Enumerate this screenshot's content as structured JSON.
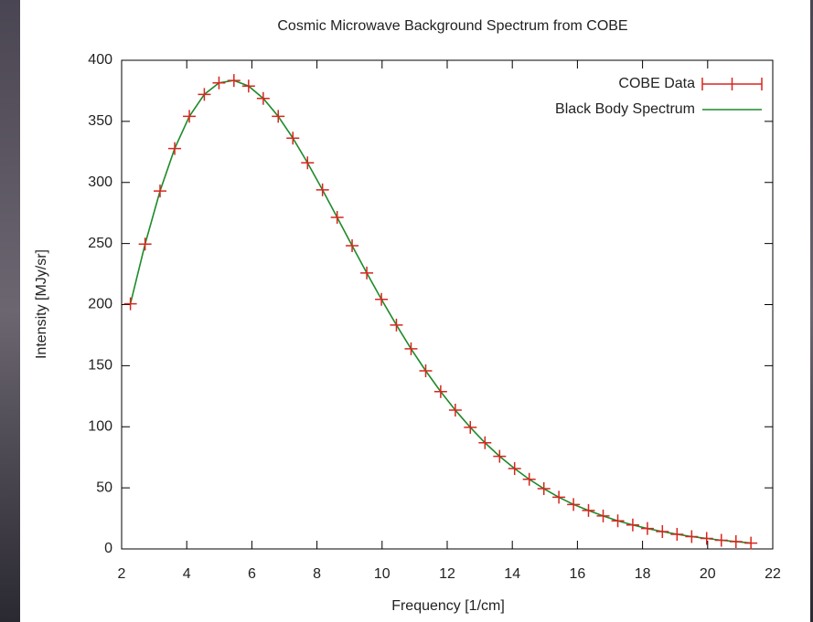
{
  "chart_data": {
    "type": "scatter",
    "title": "Cosmic Microwave Background Spectrum from COBE",
    "x_label": "Frequency [1/cm]",
    "y_label": "Intensity [MJy/sr]",
    "xlim": [
      2,
      22
    ],
    "xticks": [
      2,
      4,
      6,
      8,
      10,
      12,
      14,
      16,
      18,
      20,
      22
    ],
    "ylim": [
      0,
      400
    ],
    "yticks": [
      0,
      50,
      100,
      150,
      200,
      250,
      300,
      350,
      400
    ],
    "legend": "upper right",
    "series": [
      {
        "name": "COBE Data",
        "type": "scatter",
        "color": "#d7261e",
        "x": [
          2.27,
          2.72,
          3.18,
          3.63,
          4.08,
          4.54,
          4.99,
          5.45,
          5.9,
          6.35,
          6.81,
          7.26,
          7.71,
          8.17,
          8.62,
          9.08,
          9.53,
          9.98,
          10.44,
          10.89,
          11.34,
          11.8,
          12.25,
          12.71,
          13.16,
          13.61,
          14.07,
          14.52,
          14.97,
          15.43,
          15.88,
          16.34,
          16.79,
          17.24,
          17.7,
          18.15,
          18.61,
          19.06,
          19.51,
          19.97,
          20.42,
          20.87,
          21.33
        ],
        "values": [
          200.7,
          249.5,
          293.0,
          327.8,
          354.1,
          372.1,
          381.5,
          383.5,
          378.9,
          368.8,
          354.1,
          336.3,
          316.1,
          293.9,
          271.4,
          248.2,
          225.9,
          204.3,
          183.3,
          163.8,
          145.8,
          128.8,
          113.6,
          99.5,
          86.9,
          75.8,
          65.8,
          57.0,
          49.3,
          42.3,
          36.4,
          31.5,
          27.0,
          23.0,
          19.6,
          16.7,
          14.2,
          12.0,
          10.1,
          8.6,
          7.1,
          6.0,
          4.8
        ]
      },
      {
        "name": "Black Body Spectrum",
        "type": "line",
        "color": "#1f8a2a",
        "x": [
          2.27,
          2.72,
          3.18,
          3.63,
          4.08,
          4.54,
          4.99,
          5.45,
          5.9,
          6.35,
          6.81,
          7.26,
          7.71,
          8.17,
          8.62,
          9.08,
          9.53,
          9.98,
          10.44,
          10.89,
          11.34,
          11.8,
          12.25,
          12.71,
          13.16,
          13.61,
          14.07,
          14.52,
          14.97,
          15.43,
          15.88,
          16.34,
          16.79,
          17.24,
          17.7,
          18.15,
          18.61,
          19.06,
          19.51,
          19.97,
          20.42,
          20.87,
          21.33
        ],
        "values": [
          200.7,
          249.5,
          293.0,
          327.8,
          354.1,
          372.1,
          381.5,
          383.5,
          378.9,
          368.8,
          354.1,
          336.3,
          316.1,
          293.9,
          271.4,
          248.2,
          225.9,
          204.3,
          183.3,
          163.8,
          145.8,
          128.8,
          113.6,
          99.5,
          86.9,
          75.8,
          65.8,
          57.0,
          49.3,
          42.3,
          36.4,
          31.5,
          27.0,
          23.0,
          19.6,
          16.7,
          14.2,
          12.0,
          10.1,
          8.6,
          7.1,
          6.0,
          4.8
        ]
      }
    ]
  }
}
